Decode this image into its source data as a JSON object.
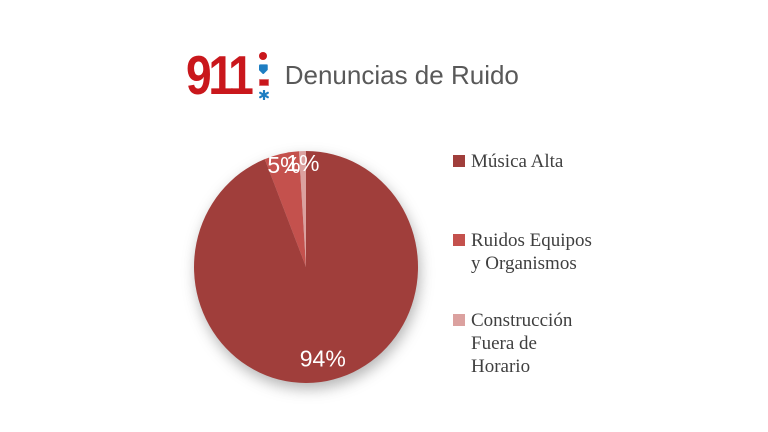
{
  "page": {
    "background": "#ffffff"
  },
  "header": {
    "logo": {
      "text": "911",
      "color": "#c9171c",
      "icons": [
        "red-dot",
        "blue-shield",
        "red-flag",
        "blue-star"
      ]
    },
    "title": "Denuncias de Ruido",
    "title_color": "#595959"
  },
  "chart_data": {
    "type": "pie",
    "title": "Denuncias de Ruido",
    "direction": "clockwise",
    "start_angle_deg": 0,
    "legend_position": "right",
    "label_color": "#ffffff",
    "slices": [
      {
        "label": "Música Alta",
        "value": 94,
        "display": "94%",
        "color": "#a03e3b",
        "label_r": 0.8
      },
      {
        "label": "Ruidos Equipos y Organismos",
        "value": 5,
        "display": "5%",
        "color": "#c4514d",
        "label_r": 0.9
      },
      {
        "label": "Construcción Fuera de Horario",
        "value": 1,
        "display": "1%",
        "color": "#dba19f",
        "label_r": 0.9
      }
    ]
  },
  "legend": {
    "items": [
      {
        "label": "Música Alta"
      },
      {
        "label": "Ruidos Equipos\ny Organismos"
      },
      {
        "label": "Construcción\nFuera de\nHorario"
      }
    ]
  }
}
